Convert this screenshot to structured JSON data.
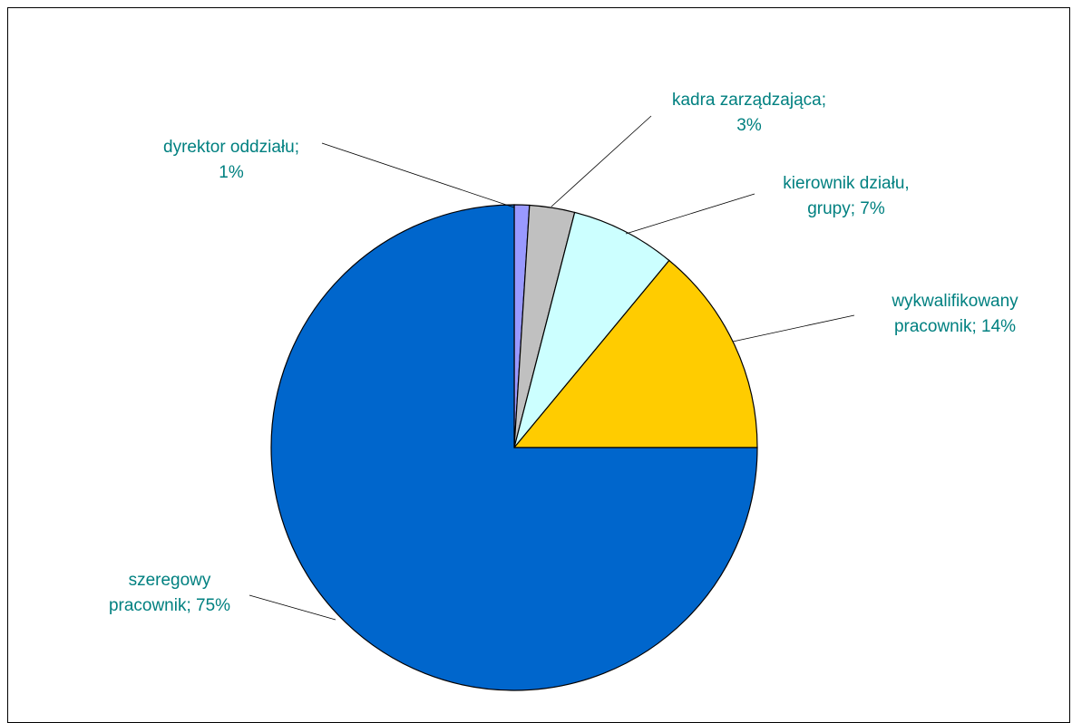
{
  "chart_data": {
    "type": "pie",
    "title": "",
    "slices": [
      {
        "label": "dyrektor oddziału",
        "value": 1,
        "label_lines": [
          "dyrektor oddziału;",
          "1%"
        ],
        "color": "#9999FF"
      },
      {
        "label": "kadra zarządzająca",
        "value": 3,
        "label_lines": [
          "kadra zarządzająca;",
          "3%"
        ],
        "color": "#C0C0C0"
      },
      {
        "label": "kierownik działu, grupy",
        "value": 7,
        "label_lines": [
          "kierownik działu,",
          "grupy; 7%"
        ],
        "color": "#CCFFFF"
      },
      {
        "label": "wykwalifikowany pracownik",
        "value": 14,
        "label_lines": [
          "wykwalifikowany",
          "pracownik; 14%"
        ],
        "color": "#FFCC00"
      },
      {
        "label": "szeregowy pracownik",
        "value": 75,
        "label_lines": [
          "szeregowy",
          "pracownik; 75%"
        ],
        "color": "#0066CC"
      }
    ],
    "start_angle": "12 o'clock",
    "direction": "clockwise",
    "legend": "none",
    "label_color": "#008080"
  }
}
